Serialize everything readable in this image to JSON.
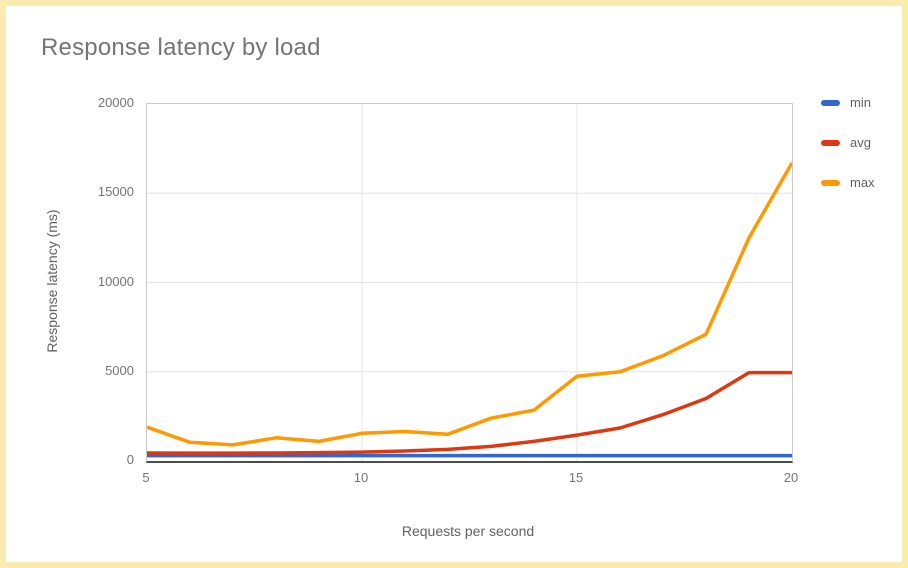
{
  "page": {
    "title": "Response latency by load",
    "border_color": "#FAEBAE"
  },
  "chart_data": {
    "type": "line",
    "title": "Response latency by load",
    "xlabel": "Requests per second",
    "ylabel": "Response latency (ms)",
    "x": [
      5,
      6,
      7,
      8,
      9,
      10,
      11,
      12,
      13,
      14,
      15,
      16,
      17,
      18,
      19,
      20
    ],
    "series": [
      {
        "name": "min",
        "color": "#3366CC",
        "values": [
          300,
          300,
          300,
          300,
          300,
          300,
          300,
          300,
          300,
          300,
          300,
          300,
          300,
          300,
          300,
          300
        ]
      },
      {
        "name": "avg",
        "color": "#DC3912",
        "values": [
          450,
          440,
          440,
          450,
          470,
          500,
          560,
          650,
          820,
          1100,
          1450,
          1850,
          2600,
          3500,
          4950,
          4950
        ]
      },
      {
        "name": "max",
        "color": "#FF9900",
        "values": [
          1900,
          1050,
          900,
          1300,
          1100,
          1550,
          1650,
          1500,
          2400,
          2850,
          4750,
          5000,
          5900,
          7100,
          12500,
          16700
        ]
      }
    ],
    "xlim": [
      5,
      20
    ],
    "ylim": [
      0,
      20000
    ],
    "x_ticks": [
      5,
      10,
      15,
      20
    ],
    "y_ticks": [
      0,
      5000,
      10000,
      15000,
      20000
    ],
    "grid": true,
    "gridline_color": "#e3e3e3",
    "legend_position": "right",
    "line_width": 3.5
  }
}
